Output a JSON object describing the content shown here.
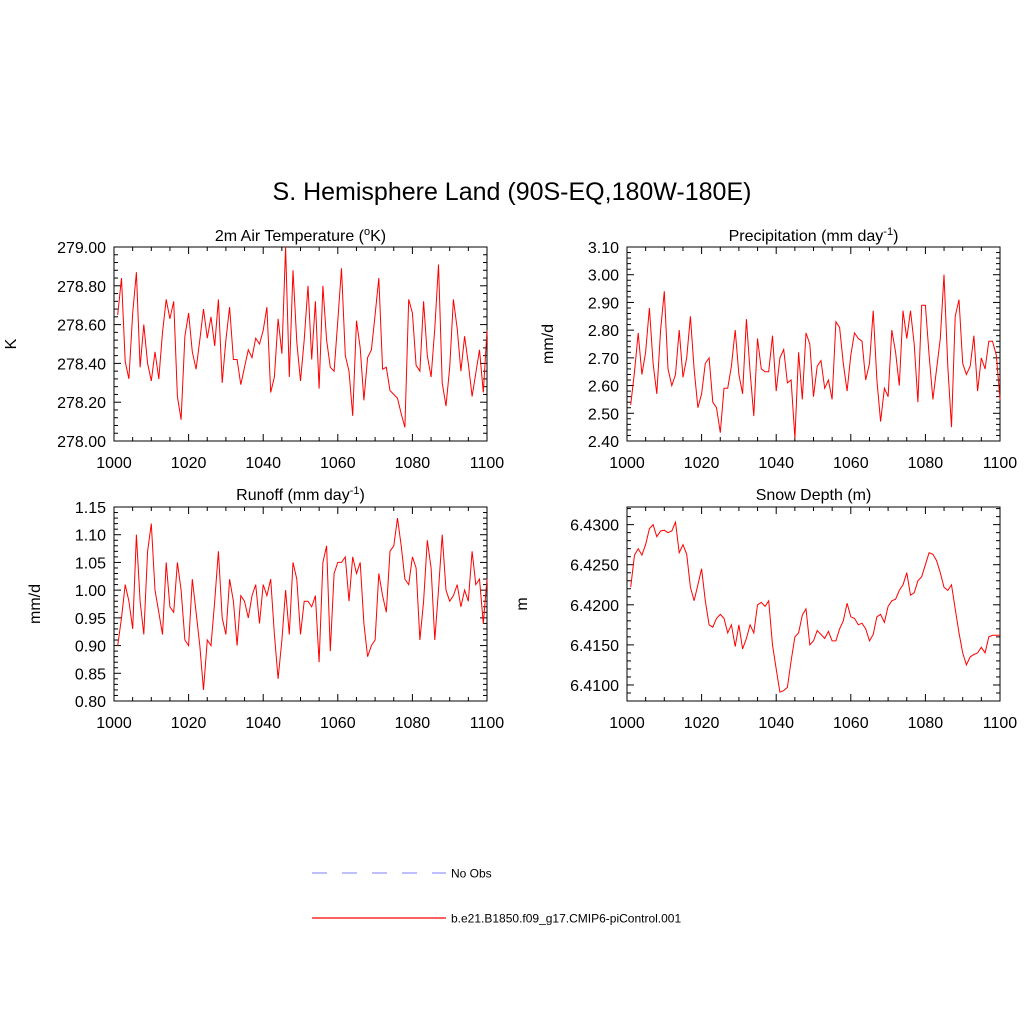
{
  "figure": {
    "title": "S. Hemisphere Land (90S-EQ,180W-180E)",
    "series_color": "#ff0000",
    "obs_color": "#9999ff"
  },
  "legend": {
    "items": [
      {
        "label": "No Obs",
        "style": "dashed",
        "color": "#9999ff"
      },
      {
        "label": "b.e21.B1850.f09_g17.CMIP6-piControl.001",
        "style": "solid",
        "color": "#ff0000"
      }
    ]
  },
  "chart_data": [
    {
      "type": "line",
      "title": "2m Air Temperature",
      "title_sup": "o",
      "title_suffix": "K)",
      "title_prefix": "2m Air Temperature (",
      "ylabel": "K",
      "xlim": [
        1000,
        1100
      ],
      "ylim": [
        278.0,
        279.0
      ],
      "xticks": [
        1000,
        1020,
        1040,
        1060,
        1080,
        1100
      ],
      "xtick_labels": [
        "1000",
        "1020",
        "1040",
        "1060",
        "1080",
        "1100"
      ],
      "yticks": [
        278.0,
        278.2,
        278.4,
        278.6,
        278.8,
        279.0
      ],
      "ytick_labels": [
        "278.00",
        "278.20",
        "278.40",
        "278.60",
        "278.80",
        "279.00"
      ],
      "x_start": 1001,
      "values": [
        278.65,
        278.84,
        278.41,
        278.32,
        278.66,
        278.87,
        278.38,
        278.6,
        278.4,
        278.31,
        278.46,
        278.32,
        278.56,
        278.73,
        278.63,
        278.72,
        278.23,
        278.11,
        278.54,
        278.66,
        278.46,
        278.37,
        278.52,
        278.68,
        278.53,
        278.64,
        278.49,
        278.73,
        278.3,
        278.52,
        278.69,
        278.42,
        278.42,
        278.29,
        278.38,
        278.47,
        278.43,
        278.53,
        278.5,
        278.57,
        278.69,
        278.25,
        278.33,
        278.63,
        278.45,
        279.0,
        278.33,
        278.88,
        278.51,
        278.31,
        278.52,
        278.8,
        278.42,
        278.72,
        278.27,
        278.8,
        278.52,
        278.38,
        278.36,
        278.62,
        278.89,
        278.44,
        278.36,
        278.13,
        278.62,
        278.48,
        278.21,
        278.43,
        278.47,
        278.65,
        278.84,
        278.37,
        278.38,
        278.26,
        278.24,
        278.22,
        278.14,
        278.07,
        278.73,
        278.66,
        278.39,
        278.36,
        278.72,
        278.44,
        278.33,
        278.58,
        278.91,
        278.3,
        278.18,
        278.38,
        278.73,
        278.58,
        278.36,
        278.54,
        278.4,
        278.23,
        278.35,
        278.47,
        278.25,
        278.57
      ]
    },
    {
      "type": "line",
      "title": "Precipitation",
      "title_prefix": "Precipitation (mm day",
      "title_sup": "-1",
      "title_suffix": ")",
      "ylabel": "mm/d",
      "xlim": [
        1000,
        1100
      ],
      "ylim": [
        2.4,
        3.1
      ],
      "xticks": [
        1000,
        1020,
        1040,
        1060,
        1080,
        1100
      ],
      "xtick_labels": [
        "1000",
        "1020",
        "1040",
        "1060",
        "1080",
        "1100"
      ],
      "yticks": [
        2.4,
        2.5,
        2.6,
        2.7,
        2.8,
        2.9,
        3.0,
        3.1
      ],
      "ytick_labels": [
        "2.40",
        "2.50",
        "2.60",
        "2.70",
        "2.80",
        "2.90",
        "3.00",
        "3.10"
      ],
      "x_start": 1001,
      "values": [
        2.53,
        2.65,
        2.79,
        2.64,
        2.72,
        2.88,
        2.68,
        2.57,
        2.8,
        2.94,
        2.66,
        2.6,
        2.64,
        2.8,
        2.63,
        2.7,
        2.85,
        2.66,
        2.52,
        2.57,
        2.68,
        2.7,
        2.54,
        2.52,
        2.43,
        2.59,
        2.59,
        2.67,
        2.8,
        2.64,
        2.57,
        2.84,
        2.65,
        2.49,
        2.77,
        2.66,
        2.65,
        2.65,
        2.78,
        2.58,
        2.7,
        2.73,
        2.61,
        2.62,
        2.41,
        2.72,
        2.55,
        2.79,
        2.75,
        2.56,
        2.67,
        2.69,
        2.59,
        2.62,
        2.55,
        2.83,
        2.81,
        2.68,
        2.58,
        2.71,
        2.79,
        2.77,
        2.76,
        2.62,
        2.68,
        2.87,
        2.62,
        2.47,
        2.59,
        2.56,
        2.8,
        2.72,
        2.6,
        2.87,
        2.77,
        2.87,
        2.75,
        2.54,
        2.89,
        2.89,
        2.71,
        2.55,
        2.66,
        2.77,
        3.0,
        2.67,
        2.45,
        2.85,
        2.91,
        2.68,
        2.64,
        2.67,
        2.78,
        2.58,
        2.7,
        2.66,
        2.76,
        2.76,
        2.71,
        2.55
      ]
    },
    {
      "type": "line",
      "title": "Runoff",
      "title_prefix": "Runoff (mm day",
      "title_sup": "-1",
      "title_suffix": ")",
      "ylabel": "mm/d",
      "xlim": [
        1000,
        1100
      ],
      "ylim": [
        0.8,
        1.15
      ],
      "xticks": [
        1000,
        1020,
        1040,
        1060,
        1080,
        1100
      ],
      "xtick_labels": [
        "1000",
        "1020",
        "1040",
        "1060",
        "1080",
        "1100"
      ],
      "yticks": [
        0.8,
        0.85,
        0.9,
        0.95,
        1.0,
        1.05,
        1.1,
        1.15
      ],
      "ytick_labels": [
        "0.80",
        "0.85",
        "0.90",
        "0.95",
        "1.00",
        "1.05",
        "1.10",
        "1.15"
      ],
      "x_start": 1001,
      "values": [
        0.9,
        0.95,
        1.01,
        0.98,
        0.93,
        1.1,
        0.98,
        0.92,
        1.07,
        1.12,
        1.0,
        0.96,
        0.92,
        1.05,
        0.97,
        0.96,
        1.05,
        1.0,
        0.91,
        0.9,
        1.02,
        0.96,
        0.9,
        0.82,
        0.91,
        0.9,
        0.98,
        1.07,
        0.95,
        0.92,
        1.02,
        0.98,
        0.9,
        0.99,
        0.98,
        0.95,
        0.99,
        1.01,
        0.94,
        1.01,
        0.99,
        1.02,
        0.92,
        0.84,
        0.91,
        1.0,
        0.92,
        1.05,
        1.02,
        0.92,
        0.98,
        0.98,
        0.97,
        0.99,
        0.87,
        1.05,
        1.08,
        0.89,
        1.03,
        1.05,
        1.05,
        1.06,
        0.98,
        1.06,
        1.03,
        1.05,
        0.94,
        0.88,
        0.9,
        0.91,
        1.03,
        0.99,
        0.96,
        1.07,
        1.08,
        1.13,
        1.08,
        1.02,
        1.01,
        1.06,
        1.04,
        0.91,
        0.98,
        1.09,
        1.04,
        0.91,
        1.0,
        1.1,
        1.0,
        0.98,
        0.99,
        1.01,
        0.97,
        1.0,
        0.98,
        1.07,
        1.01,
        1.02,
        0.94,
        1.02
      ]
    },
    {
      "type": "line",
      "title": "Snow Depth (m)",
      "title_prefix": "Snow Depth (m)",
      "title_sup": "",
      "title_suffix": "",
      "ylabel": "m",
      "xlim": [
        1000,
        1100
      ],
      "ylim": [
        6.408,
        6.4322
      ],
      "xticks": [
        1000,
        1020,
        1040,
        1060,
        1080,
        1100
      ],
      "xtick_labels": [
        "1000",
        "1020",
        "1040",
        "1060",
        "1080",
        "1100"
      ],
      "yticks": [
        6.41,
        6.415,
        6.42,
        6.425,
        6.43
      ],
      "ytick_labels": [
        "6.4100",
        "6.4150",
        "6.4200",
        "6.4250",
        "6.4300"
      ],
      "x_start": 1001,
      "values": [
        6.4222,
        6.4262,
        6.427,
        6.4262,
        6.4275,
        6.4295,
        6.43,
        6.4285,
        6.4292,
        6.4293,
        6.429,
        6.4292,
        6.4303,
        6.4265,
        6.4275,
        6.4263,
        6.4222,
        6.4205,
        6.4225,
        6.4245,
        6.4205,
        6.4175,
        6.4172,
        6.4183,
        6.4188,
        6.4183,
        6.4165,
        6.4175,
        6.4148,
        6.4175,
        6.4145,
        6.4158,
        6.4175,
        6.4165,
        6.42,
        6.4203,
        6.4198,
        6.4205,
        6.415,
        6.412,
        6.4091,
        6.4093,
        6.4097,
        6.413,
        6.416,
        6.4165,
        6.4187,
        6.4195,
        6.415,
        6.4155,
        6.4168,
        6.4163,
        6.4158,
        6.4167,
        6.4155,
        6.4155,
        6.417,
        6.418,
        6.4202,
        6.4185,
        6.4183,
        6.4175,
        6.4177,
        6.417,
        6.4155,
        6.4163,
        6.4185,
        6.4188,
        6.4178,
        6.4198,
        6.4205,
        6.4207,
        6.4218,
        6.4225,
        6.424,
        6.4212,
        6.4215,
        6.423,
        6.4235,
        6.425,
        6.4265,
        6.4263,
        6.4255,
        6.424,
        6.4222,
        6.4218,
        6.4225,
        6.4195,
        6.4165,
        6.414,
        6.4125,
        6.4135,
        6.4138,
        6.414,
        6.4147,
        6.414,
        6.416,
        6.4162,
        6.4162,
        6.4162
      ]
    }
  ]
}
